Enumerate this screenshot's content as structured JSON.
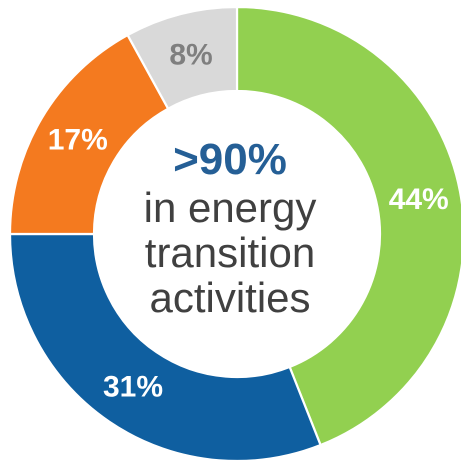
{
  "chart_data": {
    "type": "pie",
    "donut": true,
    "categories": [
      "",
      "",
      "",
      ""
    ],
    "values": [
      44,
      31,
      17,
      8
    ],
    "labels": [
      "44%",
      "31%",
      "17%",
      "8%"
    ],
    "colors": [
      "#92d050",
      "#0f5fa0",
      "#f47a1f",
      "#d9d9d9"
    ],
    "label_colors": [
      "#ffffff",
      "#ffffff",
      "#ffffff",
      "#7f7f7f"
    ],
    "title": ""
  },
  "center": {
    "headline": ">90%",
    "line1": "in energy",
    "line2": "transition",
    "line3": "activities"
  }
}
